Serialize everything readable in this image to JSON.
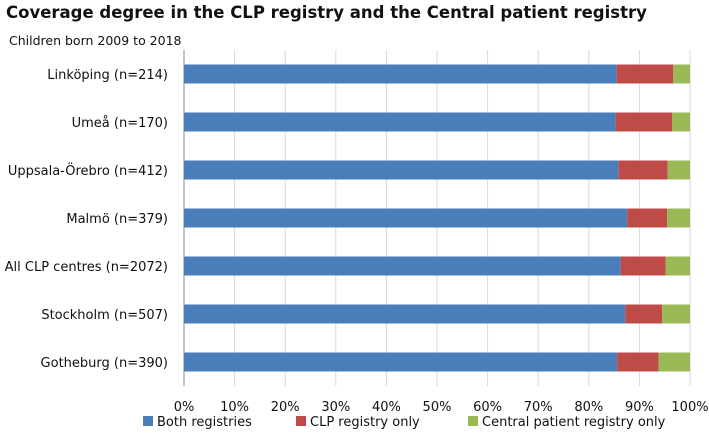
{
  "chart_data": {
    "type": "bar",
    "orientation": "horizontal",
    "stacked": true,
    "title": "Coverage degree in the CLP registry and the Central patient registry",
    "subtitle": "Children born 2009 to 2018",
    "categories": [
      "Linköping (n=214)",
      "Umeå (n=170)",
      "Uppsala-Örebro (n=412)",
      "Malmö (n=379)",
      "All CLP centres (n=2072)",
      "Stockholm (n=507)",
      "Gotheburg (n=390)"
    ],
    "series": [
      {
        "name": "Both registries",
        "color": "#4a7ebb",
        "values": [
          85.5,
          85.3,
          85.9,
          87.6,
          86.3,
          87.2,
          85.6
        ]
      },
      {
        "name": "CLP registry only",
        "color": "#be4b48",
        "values": [
          11.2,
          11.2,
          9.7,
          7.9,
          8.9,
          7.3,
          8.2
        ]
      },
      {
        "name": "Central patient registry only",
        "color": "#98b954",
        "values": [
          3.3,
          3.5,
          4.4,
          4.5,
          4.8,
          5.5,
          6.2
        ]
      }
    ],
    "xlim": [
      0,
      100
    ],
    "xticks": [
      "0%",
      "10%",
      "20%",
      "30%",
      "40%",
      "50%",
      "60%",
      "70%",
      "80%",
      "90%",
      "100%"
    ],
    "grid": true,
    "legend": "bottom"
  }
}
